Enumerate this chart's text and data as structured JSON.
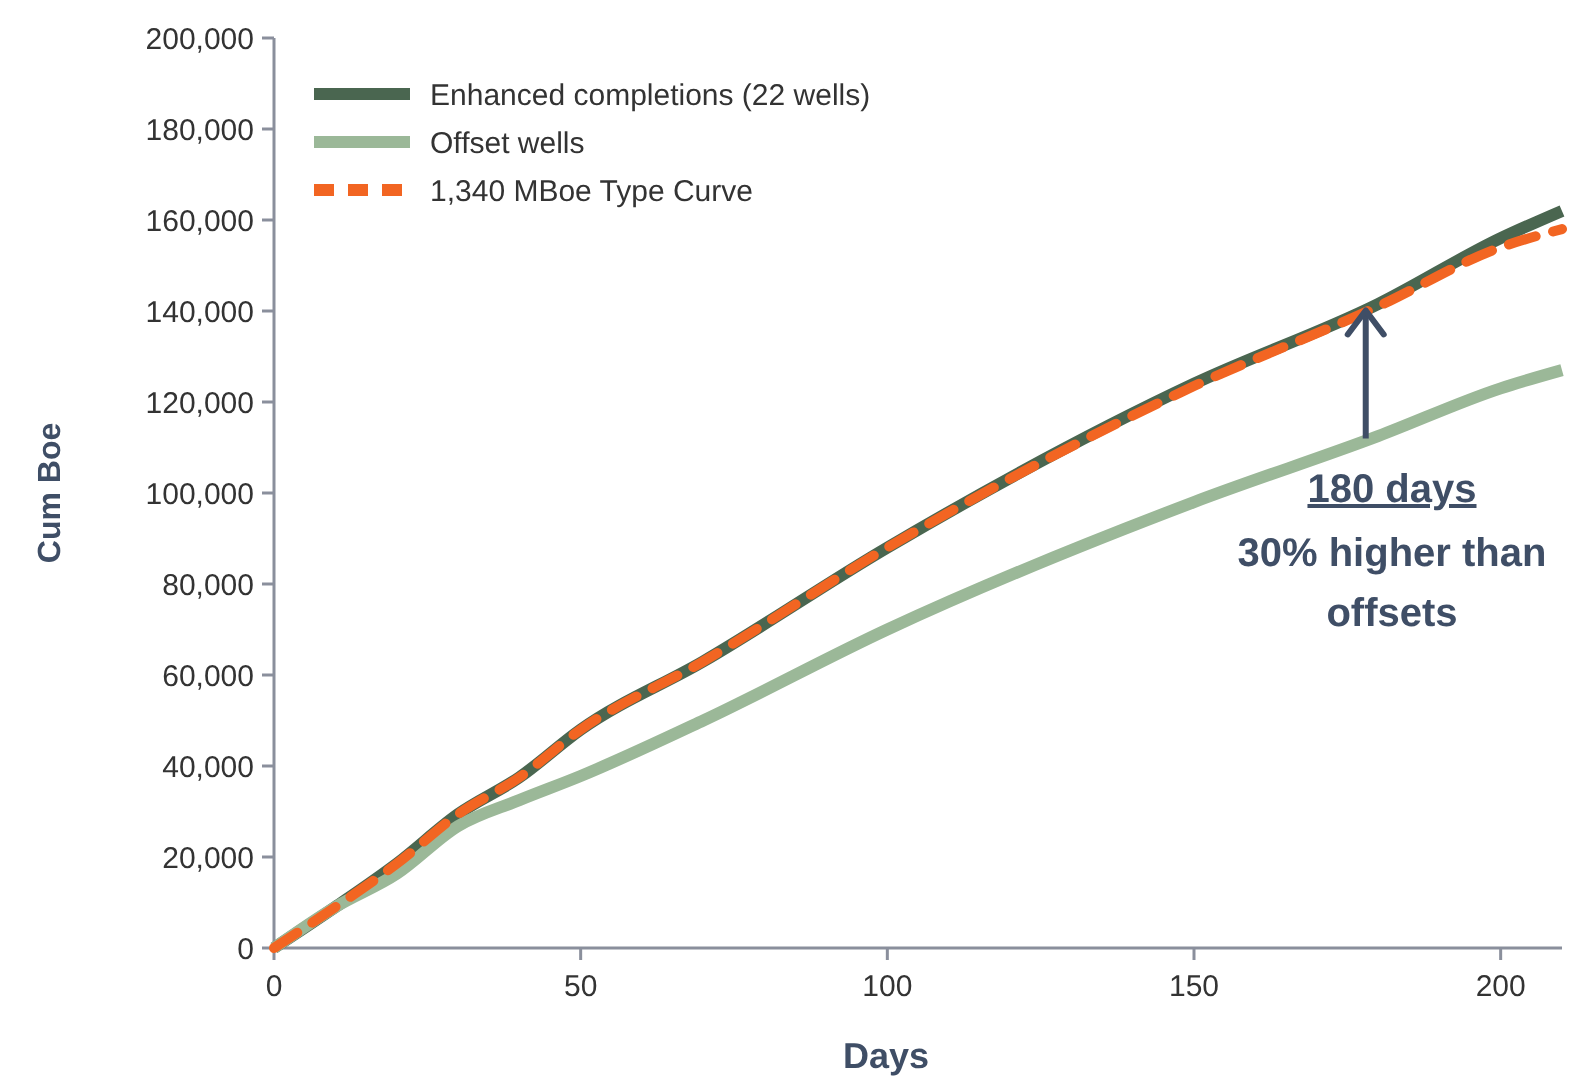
{
  "chart_data": {
    "type": "line",
    "xlabel": "Days",
    "ylabel": "Cum Boe",
    "xlim": [
      0,
      210
    ],
    "xticks": [
      0,
      50,
      100,
      150,
      200
    ],
    "ylim": [
      0,
      200000
    ],
    "yticks": [
      {
        "value": 0,
        "label": "0"
      },
      {
        "value": 20000,
        "label": "20,000"
      },
      {
        "value": 40000,
        "label": "40,000"
      },
      {
        "value": 60000,
        "label": "60,000"
      },
      {
        "value": 80000,
        "label": "80,000"
      },
      {
        "value": 100000,
        "label": "100,000"
      },
      {
        "value": 120000,
        "label": "120,000"
      },
      {
        "value": 140000,
        "label": "140,000"
      },
      {
        "value": 160000,
        "label": "160,000"
      },
      {
        "value": 180000,
        "label": "180,000"
      },
      {
        "value": 200000,
        "label": "200,000"
      }
    ],
    "grid": false,
    "legend": "top left",
    "marker": "none",
    "series": [
      {
        "name": "Enhanced completions  (22 wells)",
        "color": "#4a6650",
        "line_style": "solid",
        "x": [
          0,
          10,
          20,
          30,
          40,
          50,
          70,
          100,
          150,
          180,
          200,
          210
        ],
        "values": [
          0,
          9000,
          18500,
          29400,
          37500,
          48000,
          63000,
          88000,
          124000,
          141500,
          156000,
          162000
        ]
      },
      {
        "name": "Offset wells",
        "color": "#9bb898",
        "line_style": "solid",
        "x": [
          0,
          10,
          20,
          30,
          40,
          50,
          70,
          100,
          150,
          180,
          200,
          210
        ],
        "values": [
          0,
          9000,
          16300,
          26800,
          32500,
          37800,
          50000,
          70000,
          98000,
          112500,
          123000,
          127000
        ]
      },
      {
        "name": "1,340 MBoe Type Curve",
        "color": "#f26522",
        "line_style": "dashed",
        "x": [
          0,
          10,
          20,
          30,
          40,
          50,
          70,
          100,
          150,
          180,
          200,
          210
        ],
        "values": [
          0,
          9000,
          18500,
          29400,
          37500,
          48000,
          63000,
          88000,
          123500,
          141000,
          154000,
          158000
        ]
      }
    ],
    "annotations": [
      {
        "text": "180 days",
        "x": 178,
        "y": 141000
      },
      "30% higher than offsets"
    ]
  }
}
